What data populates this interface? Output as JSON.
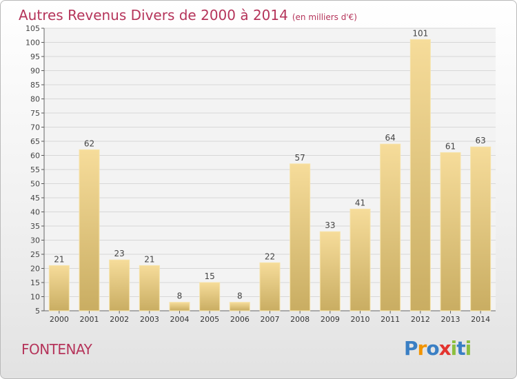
{
  "title": "Autres Revenus Divers de 2000 à 2014",
  "subtitle": "(en milliers d'€)",
  "commune": "FONTENAY",
  "brand": {
    "letters": [
      "P",
      "r",
      "o",
      "x",
      "i",
      "t",
      "i"
    ],
    "colors": [
      "#3a7fc4",
      "#f29400",
      "#3a7fc4",
      "#e3342f",
      "#8cbf3f",
      "#3a7fc4",
      "#8cbf3f"
    ]
  },
  "colors": {
    "title": "#b5345a",
    "bar_light": "#f6dc9a",
    "bar_dark": "#c9ad62",
    "grid": "#d7d7d7"
  },
  "chart_data": {
    "type": "bar",
    "categories": [
      "2000",
      "2001",
      "2002",
      "2003",
      "2004",
      "2005",
      "2006",
      "2007",
      "2008",
      "2009",
      "2010",
      "2011",
      "2012",
      "2013",
      "2014"
    ],
    "values": [
      21,
      62,
      23,
      21,
      8,
      15,
      8,
      22,
      57,
      33,
      41,
      64,
      101,
      61,
      63
    ],
    "ylim": [
      5,
      105
    ],
    "ytick_step": 5,
    "xlabel": "",
    "ylabel": "",
    "grid": true
  }
}
